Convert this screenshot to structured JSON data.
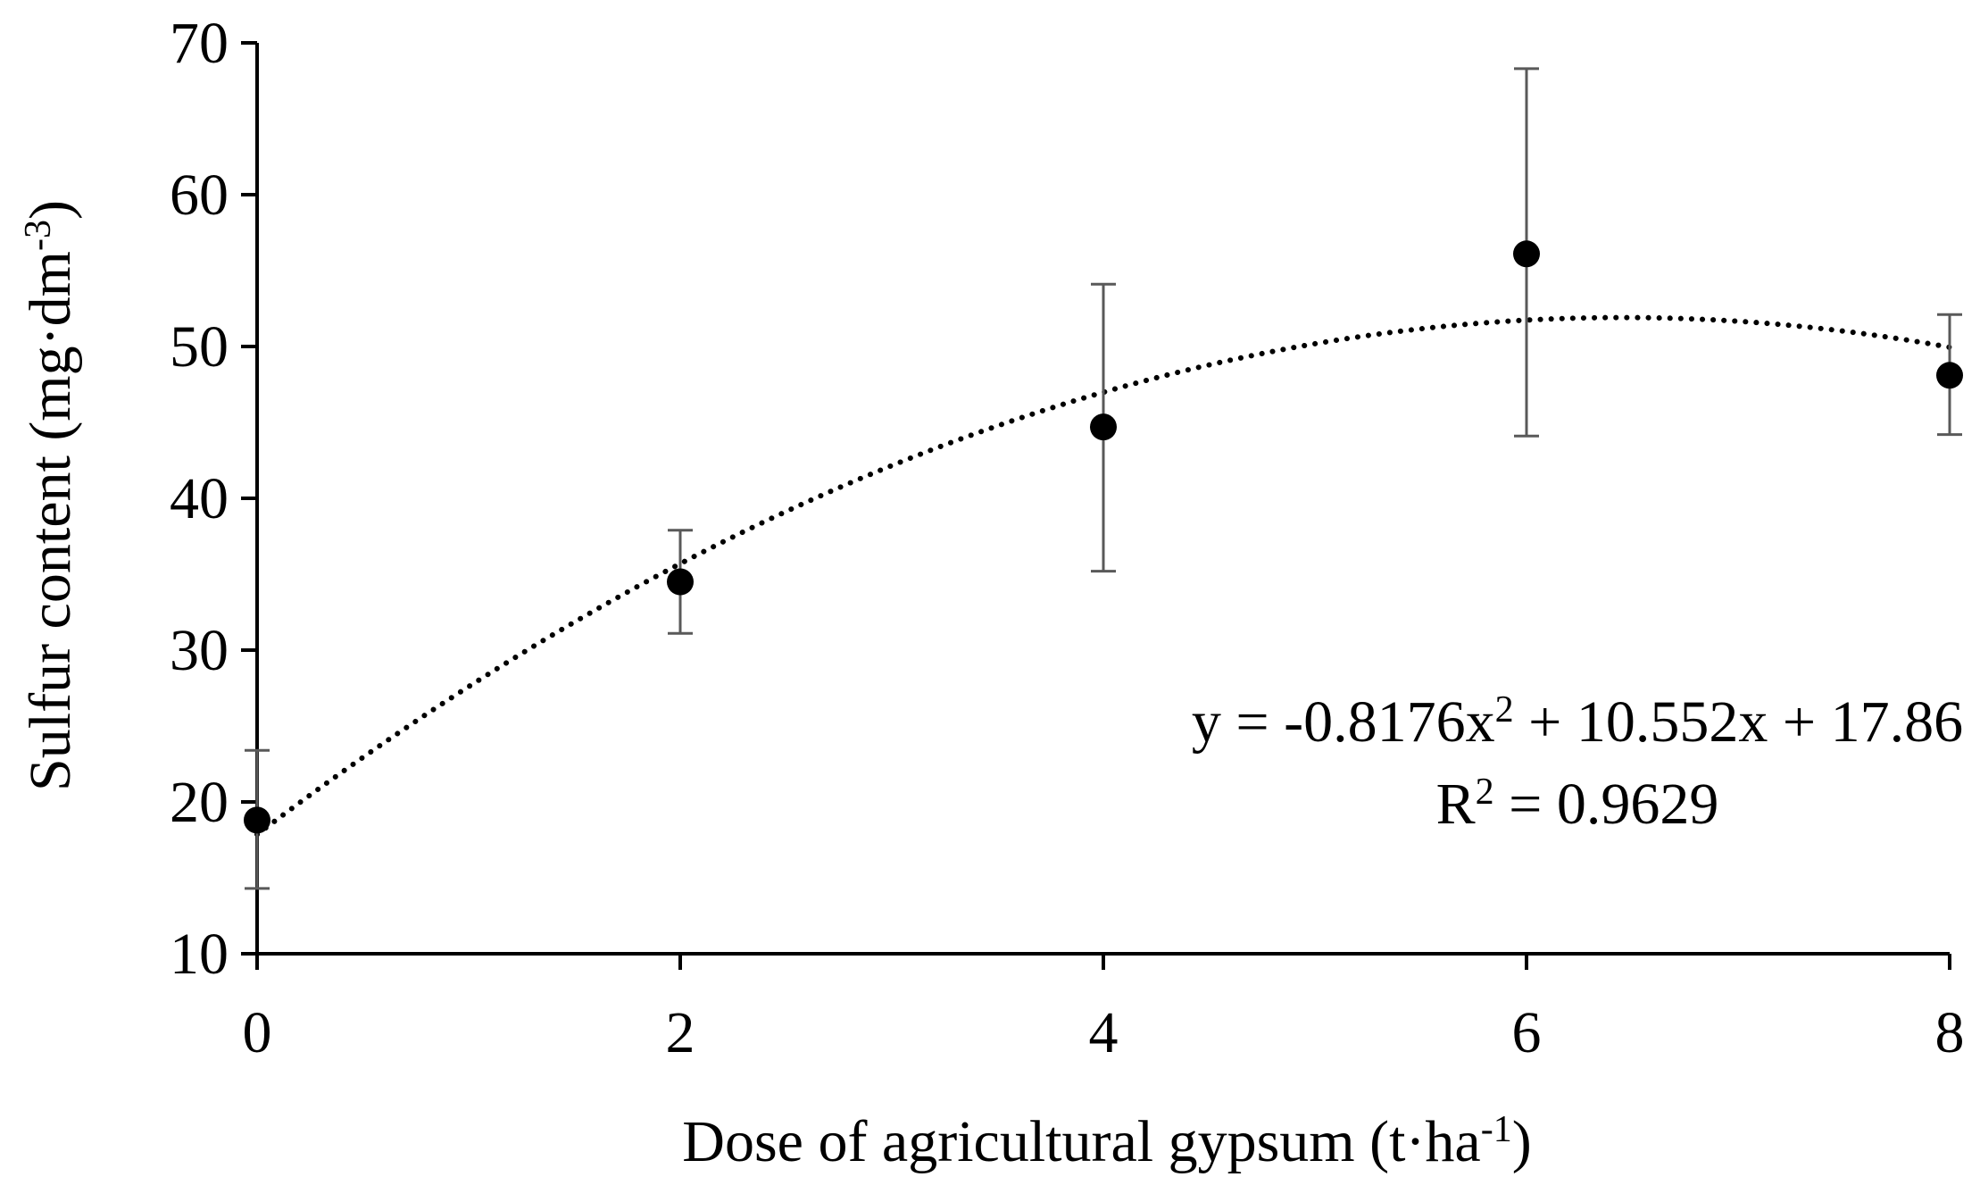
{
  "chart_data": {
    "type": "scatter",
    "title": "",
    "xlabel_main": "Dose of agricultural gypsum (t·ha",
    "xlabel_sup": "-1",
    "xlabel_close": ")",
    "ylabel_main": "Sulfur content (mg·dm",
    "ylabel_sup": "-3",
    "ylabel_close": ")",
    "xlim": [
      0,
      8
    ],
    "ylim": [
      10,
      70
    ],
    "x_ticks": [
      "0",
      "2",
      "4",
      "6",
      "8"
    ],
    "y_ticks": [
      "10",
      "20",
      "30",
      "40",
      "50",
      "60",
      "70"
    ],
    "grid": false,
    "legend": "none",
    "series": [
      {
        "x": [
          0,
          2,
          4,
          6,
          8
        ],
        "y": [
          18.8,
          34.5,
          44.7,
          56.1,
          48.1
        ],
        "err_low": [
          14.3,
          31.1,
          35.2,
          44.1,
          44.2
        ],
        "err_high": [
          23.4,
          37.9,
          54.1,
          68.3,
          52.1
        ]
      }
    ],
    "trendline": {
      "type": "polynomial",
      "style": "dotted",
      "a": -0.8176,
      "b": 10.552,
      "c": 17.86
    },
    "equation": {
      "line1_prefix": "y = -0.8176x",
      "line1_sup": "2",
      "line1_suffix": " + 10.552x + 17.86",
      "line2_prefix": "R",
      "line2_sup": "2",
      "line2_suffix": " = 0.9629"
    },
    "colors": {
      "marker": "#000000",
      "errorbar": "#595959",
      "axis": "#000000",
      "trendline": "#000000"
    }
  }
}
